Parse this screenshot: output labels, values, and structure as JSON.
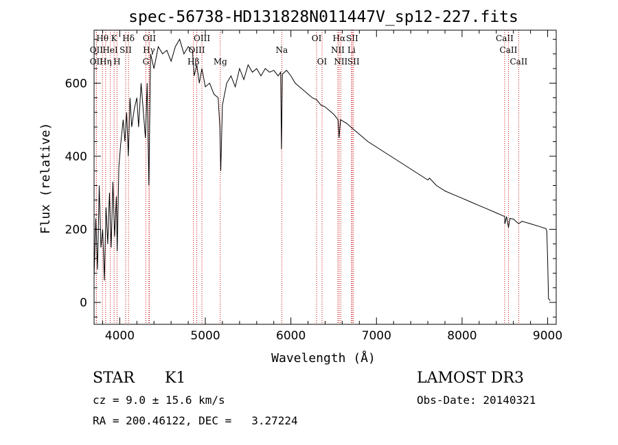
{
  "chart_data": {
    "type": "line",
    "title": "spec-56738-HD131828N011447V_sp12-227.fits",
    "xlabel": "Wavelength (Å)",
    "ylabel": "Flux (relative)",
    "xlim": [
      3700,
      9100
    ],
    "ylim": [
      -60,
      745
    ],
    "xticks": [
      4000,
      5000,
      6000,
      7000,
      8000,
      9000
    ],
    "yticks": [
      0,
      200,
      400,
      600
    ],
    "series": [
      {
        "name": "spectrum",
        "points": [
          [
            3700,
            70
          ],
          [
            3720,
            230
          ],
          [
            3740,
            90
          ],
          [
            3760,
            320
          ],
          [
            3780,
            150
          ],
          [
            3800,
            200
          ],
          [
            3820,
            60
          ],
          [
            3840,
            260
          ],
          [
            3860,
            160
          ],
          [
            3880,
            300
          ],
          [
            3900,
            150
          ],
          [
            3920,
            330
          ],
          [
            3940,
            180
          ],
          [
            3960,
            290
          ],
          [
            3970,
            140
          ],
          [
            3990,
            370
          ],
          [
            4010,
            430
          ],
          [
            4040,
            500
          ],
          [
            4060,
            440
          ],
          [
            4080,
            520
          ],
          [
            4100,
            400
          ],
          [
            4120,
            560
          ],
          [
            4140,
            480
          ],
          [
            4170,
            530
          ],
          [
            4200,
            560
          ],
          [
            4220,
            480
          ],
          [
            4250,
            600
          ],
          [
            4270,
            540
          ],
          [
            4300,
            450
          ],
          [
            4320,
            600
          ],
          [
            4340,
            320
          ],
          [
            4360,
            680
          ],
          [
            4400,
            640
          ],
          [
            4450,
            700
          ],
          [
            4500,
            680
          ],
          [
            4550,
            690
          ],
          [
            4600,
            660
          ],
          [
            4650,
            700
          ],
          [
            4700,
            720
          ],
          [
            4750,
            680
          ],
          [
            4800,
            700
          ],
          [
            4850,
            690
          ],
          [
            4870,
            620
          ],
          [
            4900,
            650
          ],
          [
            4930,
            600
          ],
          [
            4960,
            640
          ],
          [
            5000,
            590
          ],
          [
            5050,
            600
          ],
          [
            5100,
            570
          ],
          [
            5150,
            560
          ],
          [
            5170,
            480
          ],
          [
            5180,
            360
          ],
          [
            5200,
            540
          ],
          [
            5250,
            600
          ],
          [
            5300,
            620
          ],
          [
            5350,
            590
          ],
          [
            5400,
            640
          ],
          [
            5450,
            610
          ],
          [
            5500,
            650
          ],
          [
            5550,
            630
          ],
          [
            5600,
            640
          ],
          [
            5650,
            620
          ],
          [
            5700,
            640
          ],
          [
            5750,
            630
          ],
          [
            5800,
            635
          ],
          [
            5850,
            620
          ],
          [
            5880,
            630
          ],
          [
            5890,
            420
          ],
          [
            5900,
            625
          ],
          [
            5950,
            635
          ],
          [
            6000,
            620
          ],
          [
            6050,
            600
          ],
          [
            6100,
            590
          ],
          [
            6150,
            580
          ],
          [
            6200,
            570
          ],
          [
            6250,
            560
          ],
          [
            6300,
            555
          ],
          [
            6350,
            540
          ],
          [
            6400,
            535
          ],
          [
            6450,
            525
          ],
          [
            6500,
            515
          ],
          [
            6550,
            500
          ],
          [
            6563,
            450
          ],
          [
            6580,
            500
          ],
          [
            6650,
            490
          ],
          [
            6700,
            480
          ],
          [
            6800,
            460
          ],
          [
            6900,
            440
          ],
          [
            7000,
            425
          ],
          [
            7100,
            410
          ],
          [
            7200,
            395
          ],
          [
            7300,
            380
          ],
          [
            7400,
            365
          ],
          [
            7500,
            350
          ],
          [
            7600,
            335
          ],
          [
            7620,
            340
          ],
          [
            7700,
            320
          ],
          [
            7800,
            305
          ],
          [
            7900,
            295
          ],
          [
            8000,
            285
          ],
          [
            8100,
            275
          ],
          [
            8200,
            265
          ],
          [
            8300,
            255
          ],
          [
            8400,
            245
          ],
          [
            8498,
            235
          ],
          [
            8500,
            215
          ],
          [
            8520,
            235
          ],
          [
            8542,
            205
          ],
          [
            8560,
            230
          ],
          [
            8600,
            228
          ],
          [
            8662,
            215
          ],
          [
            8700,
            222
          ],
          [
            8800,
            215
          ],
          [
            8900,
            208
          ],
          [
            8980,
            202
          ],
          [
            8990,
            195
          ],
          [
            9000,
            120
          ],
          [
            9010,
            10
          ],
          [
            9030,
            5
          ]
        ]
      }
    ],
    "line_markers": [
      {
        "label": "Hθ",
        "wl": 3798,
        "row": 0
      },
      {
        "label": "K",
        "wl": 3934,
        "row": 0
      },
      {
        "label": "Hδ",
        "wl": 4102,
        "row": 0
      },
      {
        "label": "OII",
        "wl": 4346,
        "row": 0
      },
      {
        "label": "OIII",
        "wl": 4960,
        "row": 0
      },
      {
        "label": "OI",
        "wl": 6300,
        "row": 0
      },
      {
        "label": "Hα",
        "wl": 6563,
        "row": 0
      },
      {
        "label": "SII",
        "wl": 6716,
        "row": 0
      },
      {
        "label": "CaII",
        "wl": 8498,
        "row": 0
      },
      {
        "label": "OII",
        "wl": 3727,
        "row": 1
      },
      {
        "label": "HeI",
        "wl": 3889,
        "row": 1
      },
      {
        "label": "SII",
        "wl": 4069,
        "row": 1
      },
      {
        "label": "Hγ",
        "wl": 4341,
        "row": 1
      },
      {
        "label": "OIII",
        "wl": 4900,
        "row": 1
      },
      {
        "label": "Na",
        "wl": 5893,
        "row": 1
      },
      {
        "label": "NII",
        "wl": 6548,
        "row": 1
      },
      {
        "label": "Li",
        "wl": 6708,
        "row": 1
      },
      {
        "label": "CaII",
        "wl": 8542,
        "row": 1
      },
      {
        "label": "OII",
        "wl": 3727,
        "row": 2
      },
      {
        "label": "Hη",
        "wl": 3835,
        "row": 2
      },
      {
        "label": "H",
        "wl": 3968,
        "row": 2
      },
      {
        "label": "G",
        "wl": 4305,
        "row": 2
      },
      {
        "label": "Hβ",
        "wl": 4861,
        "row": 2
      },
      {
        "label": "Mg",
        "wl": 5175,
        "row": 2
      },
      {
        "label": "OI",
        "wl": 6364,
        "row": 2
      },
      {
        "label": "NII",
        "wl": 6583,
        "row": 2
      },
      {
        "label": "SII",
        "wl": 6731,
        "row": 2
      },
      {
        "label": "CaII",
        "wl": 8662,
        "row": 2
      }
    ],
    "colors": {
      "spectrum": "#000000",
      "markers": "#c80000",
      "axes": "#000000"
    }
  },
  "info": {
    "class": "STAR",
    "subclass": "K1",
    "survey": "LAMOST DR3",
    "cz": "cz = 9.0 ± 15.6 km/s",
    "obs_date": "Obs-Date: 20140321",
    "coords": "RA = 200.46122, DEC =   3.27224"
  }
}
